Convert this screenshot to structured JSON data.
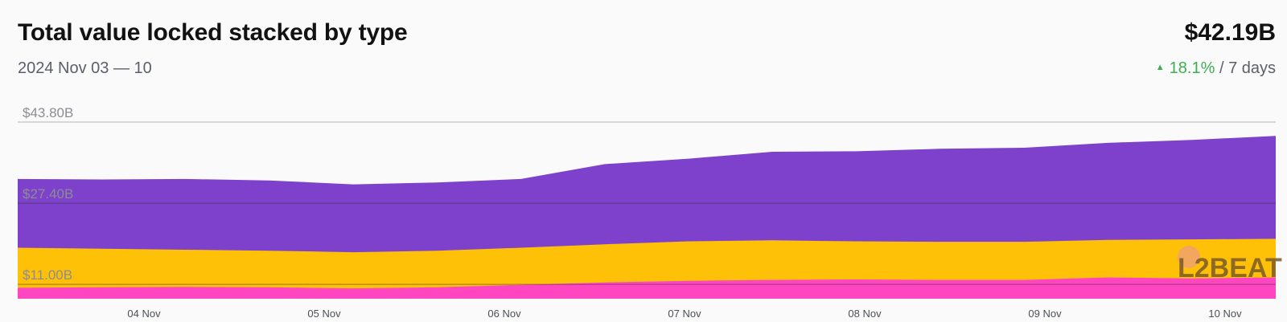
{
  "header": {
    "title": "Total value locked stacked by type",
    "subtitle": "2024 Nov 03 — 10",
    "total": "$42.19B",
    "change_pct": "18.1%",
    "change_period": "/ 7 days"
  },
  "watermark": {
    "text": "L2BEAT"
  },
  "colors": {
    "canonical": "#7e41cc",
    "external": "#ffc107",
    "native": "#ff46c0",
    "grid": "#2b2b2b",
    "up": "#3cae53"
  },
  "chart_data": {
    "type": "area",
    "stacked": true,
    "x": [
      "2024-11-03T00",
      "2024-11-03T12",
      "2024-11-04T00",
      "2024-11-04T12",
      "2024-11-05T00",
      "2024-11-05T12",
      "2024-11-06T00",
      "2024-11-06T12",
      "2024-11-07T00",
      "2024-11-07T12",
      "2024-11-08T00",
      "2024-11-08T12",
      "2024-11-09T00",
      "2024-11-09T12",
      "2024-11-10T00",
      "2024-11-10T12"
    ],
    "x_ticks": [
      "04 Nov",
      "05 Nov",
      "06 Nov",
      "07 Nov",
      "08 Nov",
      "09 Nov",
      "10 Nov"
    ],
    "y_ticks": [
      "$11.00B",
      "$27.40B",
      "$43.80B"
    ],
    "ylim": [
      8.1,
      43.8
    ],
    "series": [
      {
        "values": [
          10.3,
          10.4,
          10.5,
          10.4,
          10.2,
          10.4,
          10.9,
          11.4,
          11.7,
          11.9,
          12.0,
          11.9,
          11.9,
          12.4,
          12.2,
          12.4
        ]
      },
      {
        "values": [
          18.4,
          18.2,
          18.0,
          17.8,
          17.5,
          17.8,
          18.4,
          19.1,
          19.7,
          19.9,
          19.7,
          19.6,
          19.6,
          20.0,
          20.1,
          20.2
        ]
      },
      {
        "values": [
          32.3,
          32.2,
          32.3,
          32.0,
          31.2,
          31.6,
          32.3,
          35.3,
          36.4,
          37.8,
          37.9,
          38.4,
          38.6,
          39.6,
          40.2,
          41.0
        ]
      }
    ]
  }
}
